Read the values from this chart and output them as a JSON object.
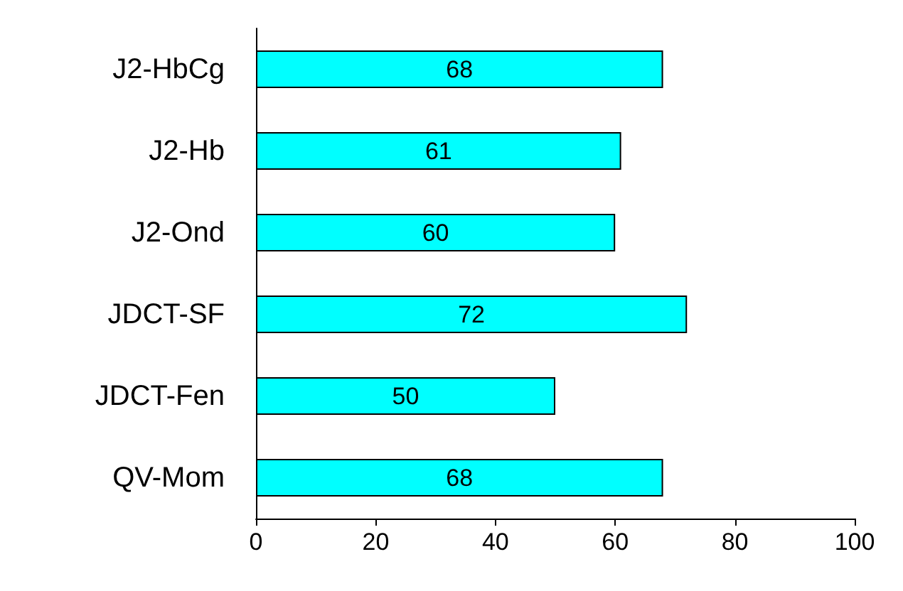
{
  "chart_data": {
    "type": "bar",
    "orientation": "horizontal",
    "categories": [
      "J2-HbCg",
      "J2-Hb",
      "J2-Ond",
      "JDCT-SF",
      "JDCT-Fen",
      "QV-Mom"
    ],
    "values": [
      68,
      61,
      60,
      72,
      50,
      68
    ],
    "color": "#00ffff",
    "data_labels": true,
    "xlim": [
      0,
      100
    ],
    "xticks": [
      0,
      20,
      40,
      60,
      80,
      100
    ],
    "grid": false
  }
}
